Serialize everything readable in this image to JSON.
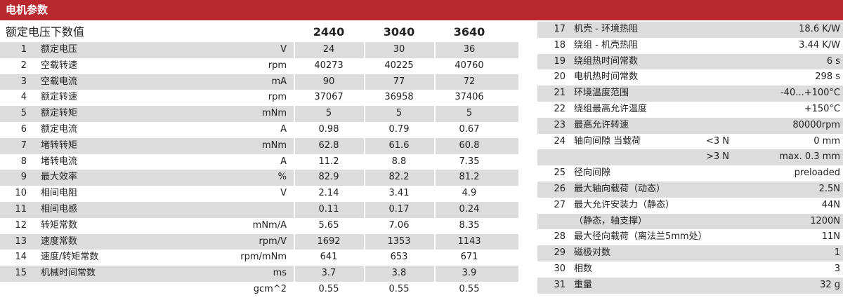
{
  "title": "电机参数",
  "header": {
    "label": "额定电压下数值",
    "cols": [
      "2440",
      "3040",
      "3640"
    ]
  },
  "left_rows": [
    {
      "n": "1",
      "name": "额定电压",
      "unit": "V",
      "v": [
        "24",
        "30",
        "36"
      ]
    },
    {
      "n": "2",
      "name": "空载转速",
      "unit": "rpm",
      "v": [
        "40273",
        "40225",
        "40760"
      ]
    },
    {
      "n": "3",
      "name": "空载电流",
      "unit": "mA",
      "v": [
        "90",
        "77",
        "72"
      ]
    },
    {
      "n": "4",
      "name": "额定转速",
      "unit": "rpm",
      "v": [
        "37067",
        "36958",
        "37406"
      ]
    },
    {
      "n": "5",
      "name": "额定转矩",
      "unit": "mNm",
      "v": [
        "5",
        "5",
        "5"
      ]
    },
    {
      "n": "6",
      "name": "额定电流",
      "unit": "A",
      "v": [
        "0.98",
        "0.79",
        "0.67"
      ]
    },
    {
      "n": "7",
      "name": "堵转转矩",
      "unit": "mNm",
      "v": [
        "62.8",
        "61.6",
        "60.8"
      ]
    },
    {
      "n": "8",
      "name": "堵转电流",
      "unit": "A",
      "v": [
        "11.2",
        "8.8",
        "7.35"
      ]
    },
    {
      "n": "9",
      "name": "最大效率",
      "unit": "%",
      "v": [
        "82.9",
        "82.2",
        "81.2"
      ]
    },
    {
      "n": "10",
      "name": "相间电阻",
      "unit": "V",
      "v": [
        "2.14",
        "3.41",
        "4.9"
      ]
    },
    {
      "n": "11",
      "name": "相间电感",
      "unit": "",
      "v": [
        "0.11",
        "0.17",
        "0.24"
      ]
    },
    {
      "n": "12",
      "name": "转矩常数",
      "unit": "mNm/A",
      "v": [
        "5.65",
        "7.06",
        "8.35"
      ]
    },
    {
      "n": "13",
      "name": "速度常数",
      "unit": "rpm/V",
      "v": [
        "1692",
        "1353",
        "1143"
      ]
    },
    {
      "n": "14",
      "name": "速度/转矩常数",
      "unit": "rpm/mNm",
      "v": [
        "641",
        "653",
        "671"
      ]
    },
    {
      "n": "15",
      "name": "机械时间常数",
      "unit": "ms",
      "v": [
        "3.7",
        "3.8",
        "3.9"
      ]
    },
    {
      "n": "",
      "name": "",
      "unit": "gcm^2",
      "v": [
        "0.55",
        "0.55",
        "0.55"
      ]
    }
  ],
  "right_rows": [
    {
      "n": "17",
      "name": "机壳 - 环境热阻",
      "cond": "",
      "val": "18.6 K/W"
    },
    {
      "n": "18",
      "name": "绕组 - 机壳热阻",
      "cond": "",
      "val": "3.44 K/W"
    },
    {
      "n": "19",
      "name": "绕组热时间常数",
      "cond": "",
      "val": "6 s"
    },
    {
      "n": "20",
      "name": "电机热时间常数",
      "cond": "",
      "val": "298 s"
    },
    {
      "n": "21",
      "name": "环境温度范围",
      "cond": "",
      "val": "-40...+100°C"
    },
    {
      "n": "22",
      "name": "绕组最高允许温度",
      "cond": "",
      "val": "+150°C"
    },
    {
      "n": "23",
      "name": "最高允许转速",
      "cond": "",
      "val": "80000rpm"
    },
    {
      "n": "24",
      "name": "轴向间隙  当载荷",
      "cond": "<3 N",
      "val": "0 mm"
    },
    {
      "n": "",
      "name": "",
      "cond": ">3 N",
      "val": "max.  0.3 mm"
    },
    {
      "n": "25",
      "name": "径向间隙",
      "cond": "",
      "val": "preloaded"
    },
    {
      "n": "26",
      "name": "最大轴向载荷（动态）",
      "cond": "",
      "val": "2.5N"
    },
    {
      "n": "27",
      "name": "最大允许安装力（静态）",
      "cond": "",
      "val": "44N"
    },
    {
      "n": "",
      "name": "（静态，轴支撑）",
      "cond": "",
      "val": "1200N"
    },
    {
      "n": "28",
      "name": "最大径向载荷（离法兰5mm处）",
      "cond": "",
      "val": "11N"
    },
    {
      "n": "29",
      "name": "磁极对数",
      "cond": "",
      "val": "1"
    },
    {
      "n": "30",
      "name": "相数",
      "cond": "",
      "val": "3"
    },
    {
      "n": "31",
      "name": "重量",
      "cond": "",
      "val": "32 g"
    }
  ]
}
